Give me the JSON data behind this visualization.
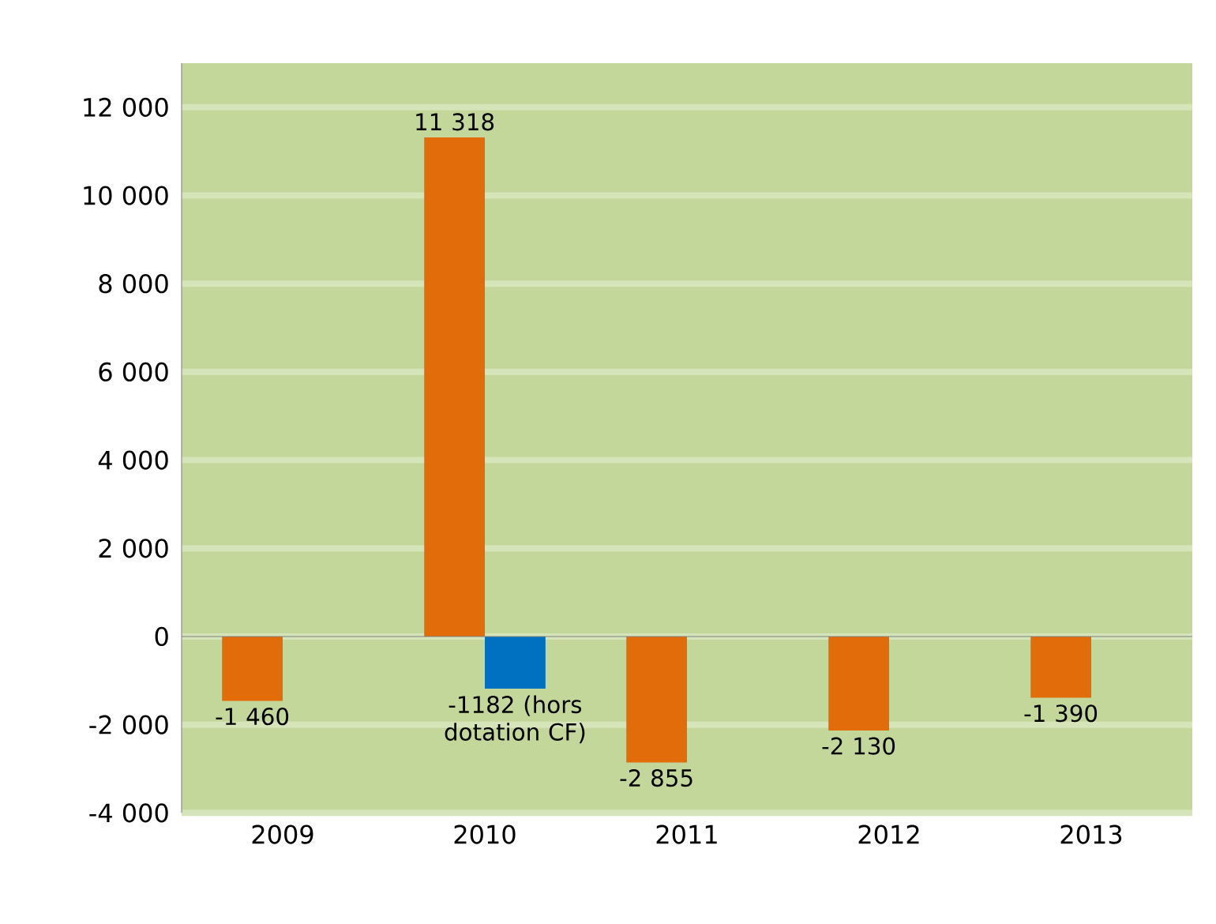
{
  "chart_data": {
    "type": "bar",
    "categories": [
      "2009",
      "2010",
      "2011",
      "2012",
      "2013"
    ],
    "series": [
      {
        "color": "#e36c0a",
        "values": [
          -1460,
          11318,
          -2855,
          -2130,
          -1390
        ],
        "value_labels": [
          "-1 460",
          "11 318",
          "-2 855",
          "-2 130",
          "-1 390"
        ]
      },
      {
        "color": "#0070c0",
        "values": [
          null,
          -1182,
          null,
          null,
          null
        ],
        "value_labels": [
          null,
          "-1182 (hors dotation CF)",
          null,
          null,
          null
        ]
      }
    ],
    "ylim": [
      -4000,
      13000
    ],
    "yticks": [
      {
        "value": -4000,
        "label": "-4 000"
      },
      {
        "value": -2000,
        "label": "-2 000"
      },
      0,
      {
        "value": 2000,
        "label": "2 000"
      },
      {
        "value": 4000,
        "label": "4 000"
      },
      {
        "value": 6000,
        "label": "6 000"
      },
      {
        "value": 8000,
        "label": "8 000"
      },
      {
        "value": 10000,
        "label": "10 000"
      },
      {
        "value": 12000,
        "label": "12 000"
      }
    ],
    "grid": "y"
  }
}
